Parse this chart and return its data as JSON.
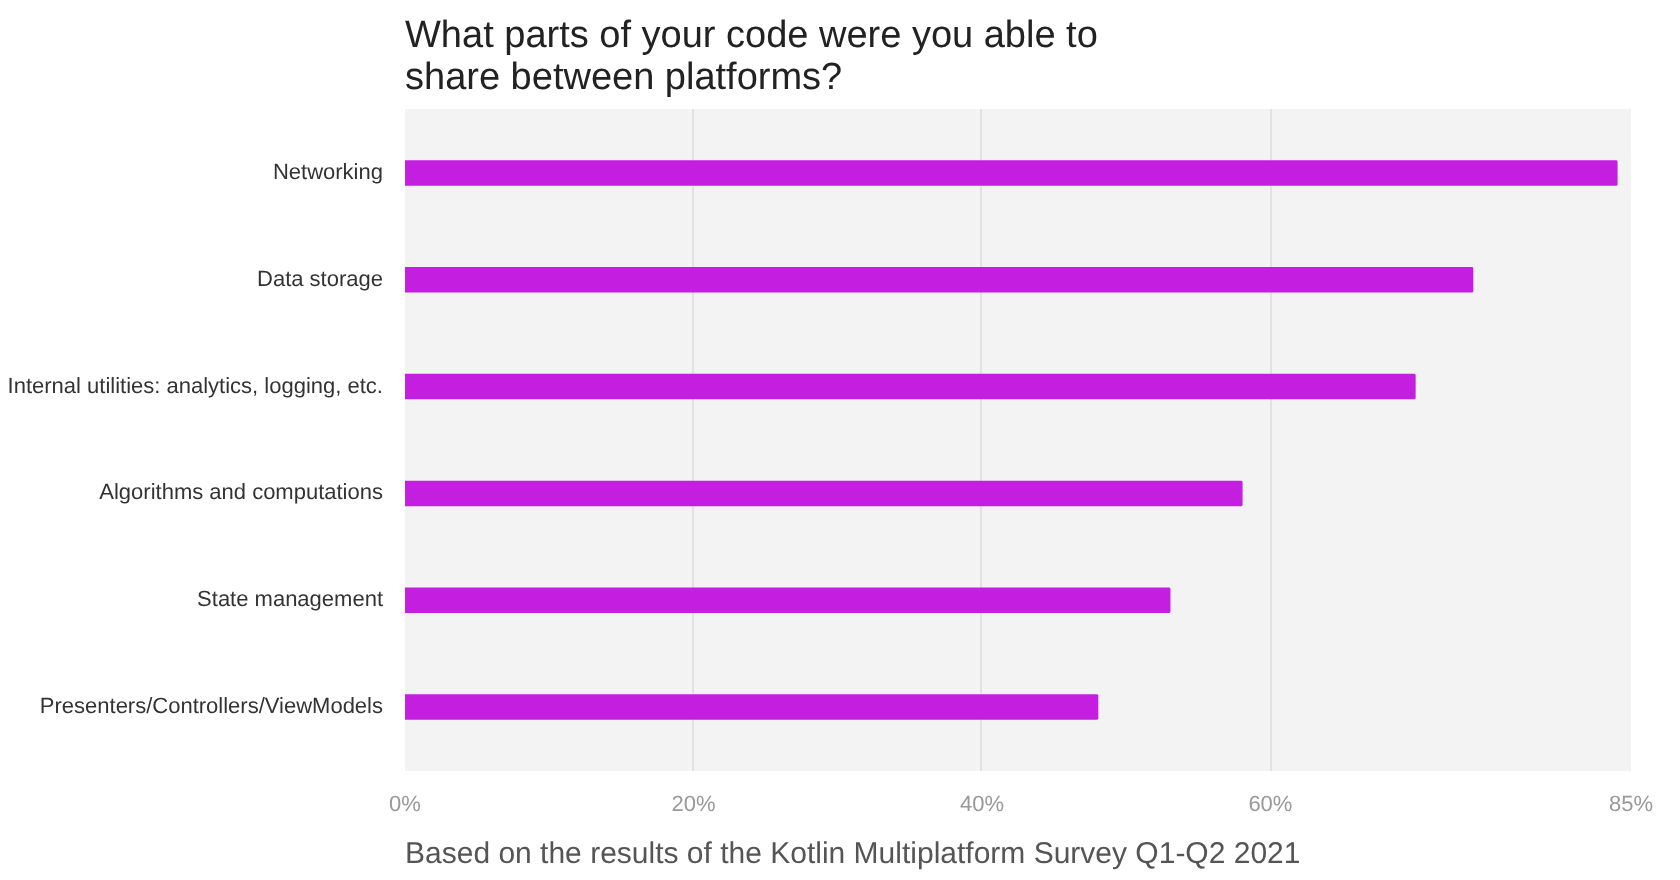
{
  "chart_data": {
    "type": "bar",
    "orientation": "horizontal",
    "title": "What parts of your code were you able to share between platforms?",
    "categories": [
      "Networking",
      "Data storage",
      "Internal utilities: analytics, logging, etc.",
      "Algorithms and computations",
      "State management",
      "Presenters/Controllers/ViewModels"
    ],
    "values": [
      84,
      74,
      70,
      58,
      53,
      48
    ],
    "color": "#c41fe0",
    "xlim": [
      0,
      85
    ],
    "xticks": [
      {
        "value": 0,
        "label": "0%"
      },
      {
        "value": 20,
        "label": "20%"
      },
      {
        "value": 40,
        "label": "40%"
      },
      {
        "value": 60,
        "label": "60%"
      },
      {
        "value": 85,
        "label": "85%"
      }
    ],
    "grid": "x",
    "annotations": [
      "Based on the results of the Kotlin Multiplatform Survey Q1-Q2 2021"
    ]
  }
}
